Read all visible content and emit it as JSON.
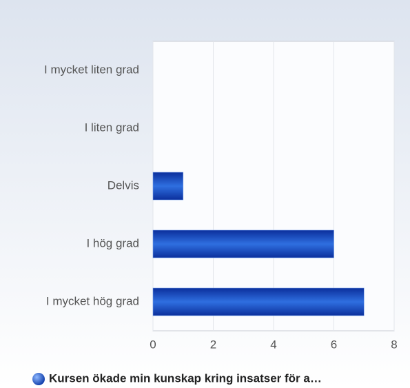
{
  "chart_data": {
    "type": "hbar",
    "categories": [
      "I mycket liten grad",
      "I liten grad",
      "Delvis",
      "I hög grad",
      "I mycket hög grad"
    ],
    "series": [
      {
        "name": "Kursen ökade min kunskap kring insatser för a…",
        "color": "#2f6fe0",
        "values": [
          0,
          0,
          1,
          6,
          7
        ]
      }
    ],
    "xlim": [
      0,
      8
    ],
    "xticks": [
      0,
      2,
      4,
      6,
      8
    ],
    "grid": true,
    "legend": "bottom"
  }
}
